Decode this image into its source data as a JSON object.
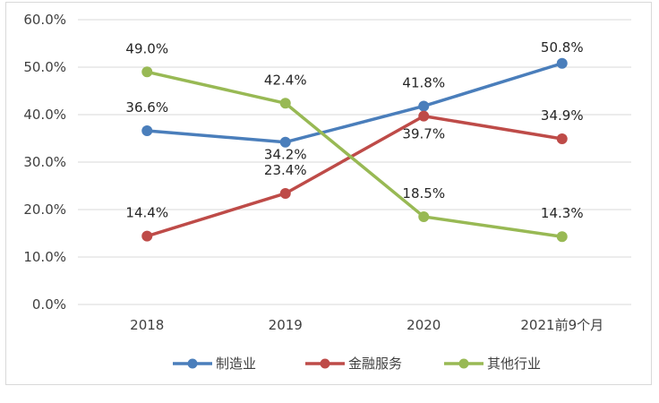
{
  "chart_data": {
    "type": "line",
    "categories": [
      "2018",
      "2019",
      "2020",
      "2021前9个月"
    ],
    "series": [
      {
        "name": "制造业",
        "values": [
          36.6,
          34.2,
          41.8,
          50.8
        ],
        "labels": [
          "36.6%",
          "34.2%",
          "41.8%",
          "50.8%"
        ]
      },
      {
        "name": "金融服务",
        "values": [
          14.4,
          23.4,
          39.7,
          34.9
        ],
        "labels": [
          "14.4%",
          "23.4%",
          "39.7%",
          "34.9%"
        ]
      },
      {
        "name": "其他行业",
        "values": [
          49.0,
          42.4,
          18.5,
          14.3
        ],
        "labels": [
          "49.0%",
          "42.4%",
          "18.5%",
          "14.3%"
        ]
      }
    ],
    "y_ticks": [
      "0.0%",
      "10.0%",
      "20.0%",
      "30.0%",
      "40.0%",
      "50.0%",
      "60.0%"
    ],
    "ylim": [
      0,
      60
    ],
    "grid": true,
    "legend_position": "bottom",
    "colors": [
      "#4a7ebb",
      "#be4b48",
      "#98b954"
    ]
  }
}
